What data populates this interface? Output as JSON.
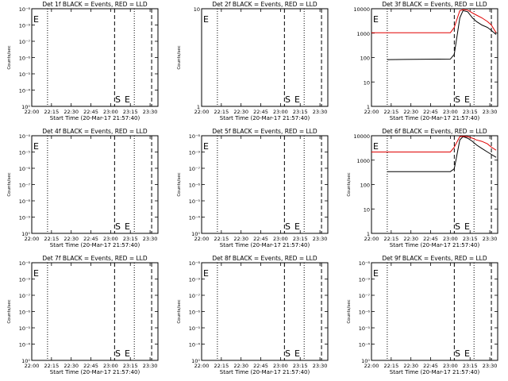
{
  "chart_data": [
    {
      "type": "line",
      "title": "Det 1f BLACK = Events, RED = LLD",
      "xlabel": "Start Time (20-Mar-17 21:57:40)",
      "ylabel": "Counts/sec",
      "scale": "log",
      "yticks": [
        "10⁻⁸",
        "10⁻⁹",
        "10⁻⁷",
        "10⁻⁶",
        "10⁻⁵",
        "10⁻⁴",
        "10⁰"
      ],
      "xticks": [
        "22:00",
        "22:15",
        "22:30",
        "22:45",
        "23:00",
        "23:15",
        "23:30"
      ],
      "markers": [
        "E",
        "S",
        "E"
      ],
      "series": []
    },
    {
      "type": "line",
      "title": "Det 2f BLACK = Events, RED = LLD",
      "xlabel": "Start Time (20-Mar-17 21:57:40)",
      "ylabel": "Counts/sec",
      "scale": "log",
      "yticks": [
        "10",
        "1"
      ],
      "xticks": [
        "22:00",
        "22:15",
        "22:30",
        "22:45",
        "23:00",
        "23:15",
        "23:30"
      ],
      "markers": [
        "E",
        "S",
        "E"
      ],
      "series": []
    },
    {
      "type": "line",
      "title": "Det 3f BLACK = Events, RED = LLD",
      "xlabel": "Start Time (20-Mar-17 21:57:40)",
      "ylabel": "",
      "scale": "log",
      "yticks": [
        "10000",
        "1000",
        "100",
        "10",
        "1"
      ],
      "xticks": [
        "22:00",
        "22:15",
        "22:30",
        "22:45",
        "23:00",
        "23:15",
        "23:30"
      ],
      "markers": [
        "E",
        "S",
        "E"
      ],
      "series": [
        {
          "color": "#000000",
          "x": [
            22.2,
            23.0,
            23.05,
            23.12,
            23.16,
            23.22,
            23.28,
            23.33,
            23.4,
            23.47,
            23.52,
            23.58
          ],
          "y": [
            90,
            95,
            150,
            5000,
            10000,
            9000,
            5000,
            3500,
            2500,
            2000,
            1500,
            1000
          ]
        },
        {
          "color": "#e00000",
          "x": [
            22.0,
            23.0,
            23.05,
            23.12,
            23.16,
            23.22,
            23.28,
            23.33,
            23.4,
            23.47,
            23.52,
            23.58
          ],
          "y": [
            1200,
            1200,
            2000,
            10000,
            11000,
            10500,
            8000,
            6500,
            5000,
            3500,
            2500,
            1200
          ]
        }
      ]
    },
    {
      "type": "line",
      "title": "Det 4f BLACK = Events, RED = LLD",
      "xlabel": "Start Time (20-Mar-17 21:57:40)",
      "ylabel": "Counts/sec",
      "scale": "log",
      "yticks": [
        "10⁻⁴",
        "10⁻⁵",
        "10⁻⁶",
        "10⁻⁷",
        "10⁻⁸",
        "10⁻⁹",
        "10⁰"
      ],
      "xticks": [
        "22:00",
        "22:15",
        "22:30",
        "22:45",
        "23:00",
        "23:15",
        "23:30"
      ],
      "markers": [
        "E",
        "S",
        "E"
      ],
      "series": []
    },
    {
      "type": "line",
      "title": "Det 5f BLACK = Events, RED = LLD",
      "xlabel": "Start Time (20-Mar-17 21:57:40)",
      "ylabel": "Counts/sec",
      "scale": "log",
      "yticks": [
        "10⁻⁸",
        "10⁻⁹",
        "10⁻⁷",
        "10⁻⁶",
        "10⁻⁵",
        "10⁻⁴",
        "10⁰"
      ],
      "xticks": [
        "22:00",
        "22:15",
        "22:30",
        "22:45",
        "23:00",
        "23:15",
        "23:30"
      ],
      "markers": [
        "E",
        "S",
        "E"
      ],
      "series": []
    },
    {
      "type": "line",
      "title": "Det 6f BLACK = Events, RED = LLD",
      "xlabel": "Start Time (20-Mar-17 21:57:40)",
      "ylabel": "Counts/sec",
      "scale": "log",
      "yticks": [
        "10000",
        "1000",
        "100",
        "10",
        "1"
      ],
      "xticks": [
        "22:00",
        "22:15",
        "22:30",
        "22:45",
        "23:00",
        "23:15",
        "23:30"
      ],
      "markers": [
        "E",
        "S",
        "E"
      ],
      "series": [
        {
          "color": "#000000",
          "x": [
            22.2,
            23.0,
            23.05,
            23.12,
            23.16,
            23.22,
            23.28,
            23.33,
            23.4,
            23.47,
            23.52,
            23.58
          ],
          "y": [
            380,
            380,
            500,
            8000,
            11000,
            9500,
            7000,
            5000,
            3500,
            2500,
            2000,
            1500
          ]
        },
        {
          "color": "#e00000",
          "x": [
            22.0,
            23.0,
            23.05,
            23.12,
            23.16,
            23.22,
            23.28,
            23.33,
            23.4,
            23.47,
            23.52,
            23.58
          ],
          "y": [
            2500,
            2500,
            4000,
            11000,
            11500,
            11000,
            9500,
            8000,
            7000,
            5500,
            4000,
            3000
          ]
        }
      ]
    },
    {
      "type": "line",
      "title": "Det 7f BLACK = Events, RED = LLD",
      "xlabel": "Start Time (20-Mar-17 21:57:40)",
      "ylabel": "Counts/sec",
      "scale": "log",
      "yticks": [
        "10⁻⁸",
        "10⁻⁹",
        "10⁻⁷",
        "10⁻⁶",
        "10⁻⁵",
        "10⁻⁴",
        "10⁰"
      ],
      "xticks": [
        "22:00",
        "22:15",
        "22:30",
        "22:45",
        "23:00",
        "23:15",
        "23:30"
      ],
      "markers": [
        "E",
        "S",
        "E"
      ],
      "series": []
    },
    {
      "type": "line",
      "title": "Det 8f BLACK = Events, RED = LLD",
      "xlabel": "Start Time (20-Mar-17 21:57:40)",
      "ylabel": "Counts/sec",
      "scale": "log",
      "yticks": [
        "10⁻⁸",
        "10⁻⁹",
        "10⁻⁷",
        "10⁻⁶",
        "10⁻⁵",
        "10⁻⁴",
        "10⁰"
      ],
      "xticks": [
        "22:00",
        "22:15",
        "22:30",
        "22:45",
        "23:00",
        "23:15",
        "23:30"
      ],
      "markers": [
        "E",
        "S",
        "E"
      ],
      "series": []
    },
    {
      "type": "line",
      "title": "Det 9f BLACK = Events, RED = LLD",
      "xlabel": "Start Time (20-Mar-17 21:57:40)",
      "ylabel": "Counts/sec",
      "scale": "log",
      "yticks": [
        "10⁻⁸",
        "10⁻⁹",
        "10⁻⁷",
        "10⁻⁶",
        "10⁻⁵",
        "10⁻⁴",
        "10⁰"
      ],
      "xticks": [
        "22:00",
        "22:15",
        "22:30",
        "22:45",
        "23:00",
        "23:15",
        "23:30"
      ],
      "markers": [
        "E",
        "S",
        "E"
      ],
      "series": []
    }
  ]
}
